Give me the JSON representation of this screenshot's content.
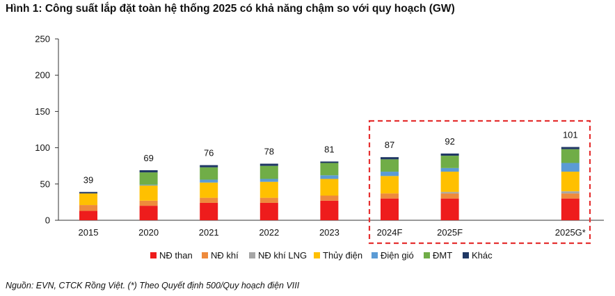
{
  "title": "Hình 1: Công suất lắp đặt toàn hệ thống 2025 có khả năng chậm so với quy hoạch (GW)",
  "footer": "Nguồn: EVN, CTCK Rồng Việt. (*) Theo Quyết định 500/Quy hoạch điện VIII",
  "colors": {
    "highlight_box": "#e53030",
    "axis": "#333333",
    "grid": "#d9d9d9"
  },
  "chart_data": {
    "type": "bar",
    "stacked": true,
    "title": "Hình 1: Công suất lắp đặt toàn hệ thống 2025 có khả năng chậm so với quy hoạch (GW)",
    "xlabel": "",
    "ylabel": "",
    "ylim": [
      0,
      250
    ],
    "yticks": [
      0,
      50,
      100,
      150,
      200,
      250
    ],
    "grid": false,
    "legend_position": "bottom",
    "categories": [
      "2015",
      "2020",
      "2021",
      "2022",
      "2023",
      "2024F",
      "2025F",
      "2025G*"
    ],
    "category_slots": [
      0,
      1,
      2,
      3,
      4,
      5,
      6,
      8
    ],
    "totals": [
      39,
      69,
      76,
      78,
      81,
      87,
      92,
      101
    ],
    "highlighted_categories": [
      "2024F",
      "2025F",
      "2025G*"
    ],
    "series": [
      {
        "name": "NĐ than",
        "color": "#ee1c1c",
        "values": [
          13,
          20,
          24,
          24,
          27,
          30,
          30,
          30
        ]
      },
      {
        "name": "NĐ khí",
        "color": "#ee8a3c",
        "values": [
          8,
          7,
          7,
          7,
          7,
          7,
          7,
          7
        ]
      },
      {
        "name": "NĐ khí LNG",
        "color": "#a6a6a6",
        "values": [
          0,
          0,
          0,
          0,
          0,
          0,
          2,
          3
        ]
      },
      {
        "name": "Thủy điện",
        "color": "#ffc000",
        "values": [
          16,
          21,
          21,
          22,
          23,
          24,
          28,
          27
        ]
      },
      {
        "name": "Điện gió",
        "color": "#5b9bd5",
        "values": [
          0,
          1,
          4,
          4,
          5,
          6,
          5,
          12
        ]
      },
      {
        "name": "ĐMT",
        "color": "#70ad47",
        "values": [
          0,
          17,
          17,
          18,
          17,
          17,
          17,
          19
        ]
      },
      {
        "name": "Khác",
        "color": "#203864",
        "values": [
          2,
          3,
          3,
          3,
          2,
          3,
          3,
          3
        ]
      }
    ]
  }
}
